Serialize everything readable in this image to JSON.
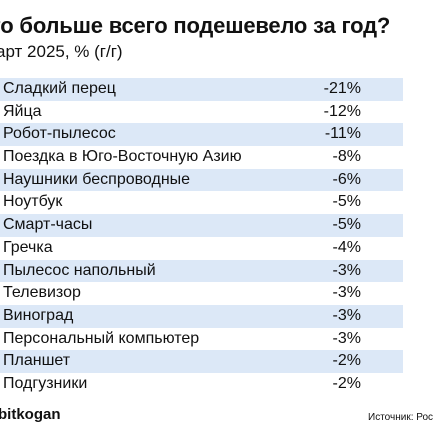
{
  "header": {
    "title": "то больше всего подешевело за год?",
    "subtitle": "арт 2025, % (г/г)"
  },
  "table": {
    "rows": [
      {
        "label": "Сладкий перец",
        "value": "-21%"
      },
      {
        "label": "Яйца",
        "value": "-12%"
      },
      {
        "label": "Робот-пылесос",
        "value": "-11%"
      },
      {
        "label": "Поездка в Юго-Восточную Азию",
        "value": "-8%"
      },
      {
        "label": "Наушники беспроводные",
        "value": "-6%"
      },
      {
        "label": "Ноутбук",
        "value": "-5%"
      },
      {
        "label": "Смарт-часы",
        "value": "-5%"
      },
      {
        "label": "Гречка",
        "value": "-4%"
      },
      {
        "label": "Пылесос напольный",
        "value": "-3%"
      },
      {
        "label": "Телевизор",
        "value": "-3%"
      },
      {
        "label": "Виноград",
        "value": "-3%"
      },
      {
        "label": "Персональный компьютер",
        "value": "-3%"
      },
      {
        "label": "Планшет",
        "value": "-2%"
      },
      {
        "label": "Подгузники",
        "value": "-2%"
      }
    ]
  },
  "footer": {
    "brand": "bitkogan",
    "source": "Источник: Рос"
  },
  "colors": {
    "row_shade": "#dce8f7"
  }
}
